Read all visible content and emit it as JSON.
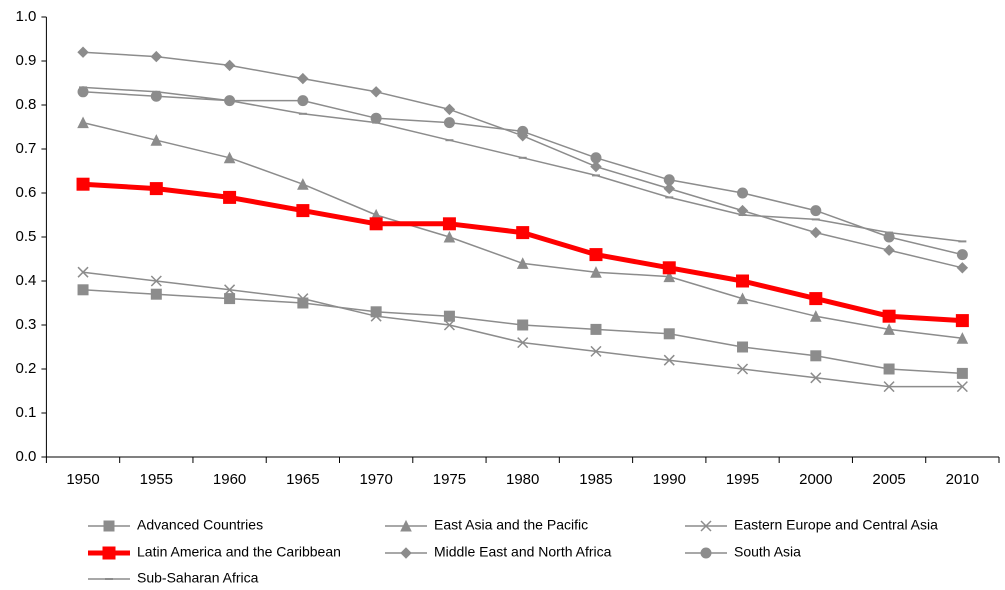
{
  "chart_data": {
    "type": "line",
    "categories": [
      "1950",
      "1955",
      "1960",
      "1965",
      "1970",
      "1975",
      "1980",
      "1985",
      "1990",
      "1995",
      "2000",
      "2005",
      "2010"
    ],
    "ylim": [
      0,
      1
    ],
    "yticks": [
      {
        "value": 0,
        "label": "0.0"
      },
      0.1,
      0.2,
      0.3,
      0.4,
      0.5,
      0.6,
      0.7,
      0.8,
      0.9,
      {
        "value": 1,
        "label": "1.0"
      }
    ],
    "series": [
      {
        "name": "Advanced Countries",
        "color": "#8c8c8c",
        "marker": "square",
        "values": [
          0.38,
          0.37,
          0.36,
          0.35,
          0.33,
          0.32,
          0.3,
          0.29,
          0.28,
          0.25,
          0.23,
          0.2,
          0.19
        ]
      },
      {
        "name": "East Asia and the Pacific",
        "color": "#8c8c8c",
        "marker": "triangle",
        "values": [
          0.76,
          0.72,
          0.68,
          0.62,
          0.55,
          0.5,
          0.44,
          0.42,
          0.41,
          0.36,
          0.32,
          0.29,
          0.27
        ]
      },
      {
        "name": "Eastern Europe and Central Asia",
        "color": "#8c8c8c",
        "marker": "x",
        "values": [
          0.42,
          0.4,
          0.38,
          0.36,
          0.32,
          0.3,
          0.26,
          0.24,
          0.22,
          0.2,
          0.18,
          0.16,
          0.16
        ]
      },
      {
        "name": "Latin America and the Caribbean",
        "color": "#ff0000",
        "marker": "square",
        "values": [
          0.62,
          0.61,
          0.59,
          0.56,
          0.53,
          0.53,
          0.51,
          0.46,
          0.43,
          0.4,
          0.36,
          0.32,
          0.31
        ]
      },
      {
        "name": "Middle East and North Africa",
        "color": "#8c8c8c",
        "marker": "diamond",
        "values": [
          0.92,
          0.91,
          0.89,
          0.86,
          0.83,
          0.79,
          0.73,
          0.66,
          0.61,
          0.56,
          0.51,
          0.47,
          0.43
        ]
      },
      {
        "name": "South Asia",
        "color": "#8c8c8c",
        "marker": "circle",
        "values": [
          0.83,
          0.82,
          0.81,
          0.81,
          0.77,
          0.76,
          0.74,
          0.68,
          0.63,
          0.6,
          0.56,
          0.5,
          0.46
        ]
      },
      {
        "name": "Sub-Saharan Africa",
        "color": "#8c8c8c",
        "marker": "dash",
        "values": [
          0.84,
          0.83,
          0.81,
          0.78,
          0.76,
          0.72,
          0.68,
          0.64,
          0.59,
          0.55,
          0.54,
          0.51,
          0.49
        ]
      }
    ]
  }
}
